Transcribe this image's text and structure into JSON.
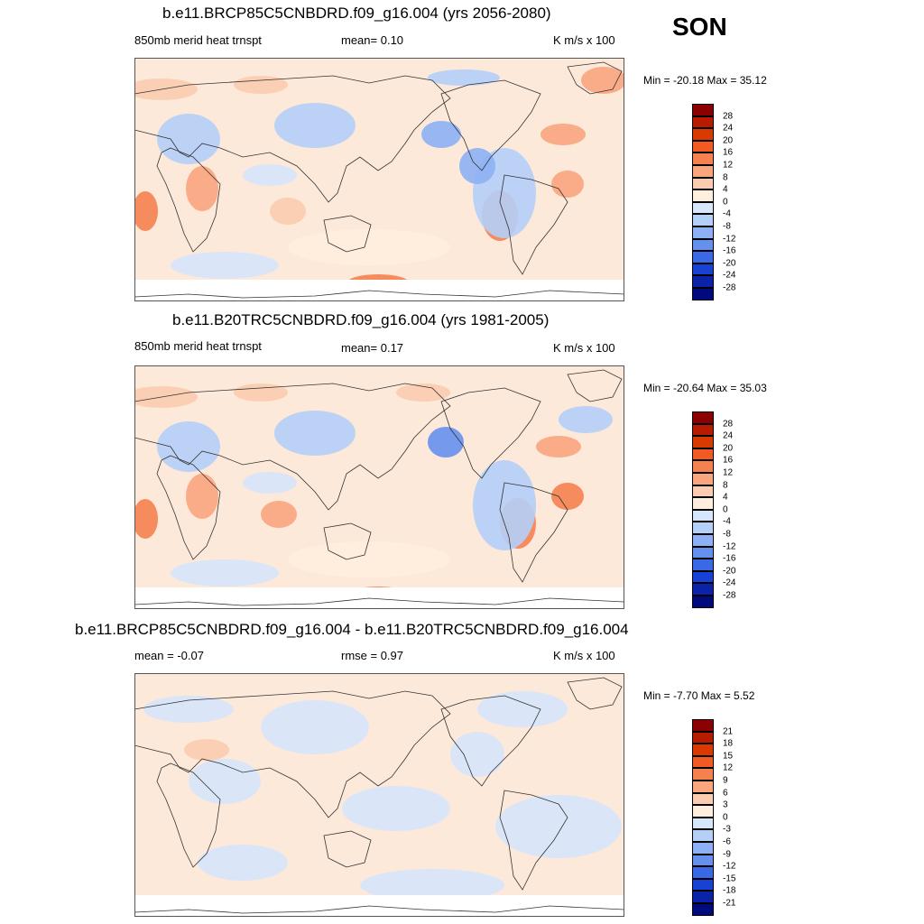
{
  "season": "SON",
  "panels": [
    {
      "title": "b.e11.BRCP85C5CNBDRD.f09_g16.004 (yrs 2056-2080)",
      "left_label": "850mb merid heat trnspt",
      "mid_label": "mean=   0.10",
      "units": "K m/s x 100",
      "minmax": "Min = -20.18 Max =  35.12",
      "colorbar": {
        "labels": [
          "28",
          "24",
          "20",
          "16",
          "12",
          "8",
          "4",
          "0",
          "-4",
          "-8",
          "-12",
          "-16",
          "-20",
          "-24",
          "-28"
        ]
      }
    },
    {
      "title": "b.e11.B20TRC5CNBDRD.f09_g16.004 (yrs 1981-2005)",
      "left_label": "850mb merid heat trnspt",
      "mid_label": "mean=   0.17",
      "units": "K m/s x 100",
      "minmax": "Min = -20.64 Max =  35.03",
      "colorbar": {
        "labels": [
          "28",
          "24",
          "20",
          "16",
          "12",
          "8",
          "4",
          "0",
          "-4",
          "-8",
          "-12",
          "-16",
          "-20",
          "-24",
          "-28"
        ]
      }
    },
    {
      "title": "b.e11.BRCP85C5CNBDRD.f09_g16.004 - b.e11.B20TRC5CNBDRD.f09_g16.004",
      "left_label": "mean =  -0.07",
      "mid_label": "rmse =   0.97",
      "units": "K m/s x 100",
      "minmax": "Min =  -7.70 Max =   5.52",
      "colorbar": {
        "labels": [
          "21",
          "18",
          "15",
          "12",
          "9",
          "6",
          "3",
          "0",
          "-3",
          "-6",
          "-9",
          "-12",
          "-15",
          "-18",
          "-21"
        ]
      }
    }
  ],
  "colors": {
    "scale": [
      "#8b0000",
      "#b71c00",
      "#d93a00",
      "#f15a22",
      "#f5814f",
      "#f9a57e",
      "#fbccaf",
      "#ffeedd",
      "#d6e6fb",
      "#b4cff8",
      "#8db1f4",
      "#6690ee",
      "#3a69e6",
      "#1742d4",
      "#0a23a8",
      "#000a7c"
    ],
    "land_line": "#333333",
    "frame": "#555555"
  }
}
